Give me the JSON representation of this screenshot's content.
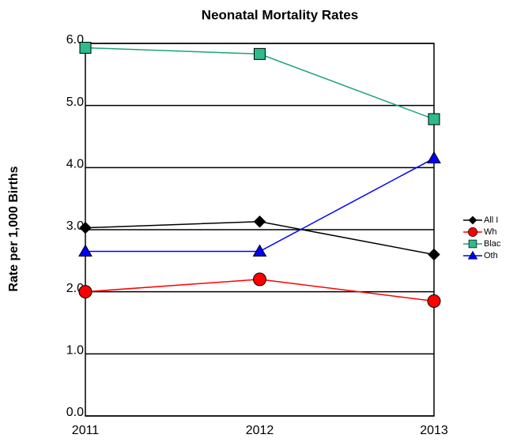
{
  "chart_data": {
    "type": "line",
    "title": "Neonatal Mortality Rates",
    "y_label": "Rate per 1,000 Births",
    "categories": [
      "2011",
      "2012",
      "2013"
    ],
    "series": [
      {
        "name": "All I",
        "color": "#000000",
        "marker": "diamond",
        "values": [
          3.03,
          3.13,
          2.6
        ]
      },
      {
        "name": "Wh",
        "color": "#ff0000",
        "marker": "circle",
        "values": [
          2.0,
          2.2,
          1.85
        ]
      },
      {
        "name": "Blac",
        "color": "#1aa37a",
        "marker": "square",
        "values": [
          5.93,
          5.83,
          4.78
        ]
      },
      {
        "name": "Oth",
        "color": "#0000ff",
        "marker": "triangle",
        "values": [
          2.65,
          2.65,
          4.15
        ]
      }
    ],
    "ylim": [
      0,
      6
    ],
    "yticks": [
      {
        "value": 0,
        "label": "0.0"
      },
      {
        "value": 1,
        "label": "1.0"
      },
      {
        "value": 2,
        "label": "2.0"
      },
      {
        "value": 3,
        "label": "3.0"
      },
      {
        "value": 4,
        "label": "4.0"
      },
      {
        "value": 5,
        "label": "5.0"
      },
      {
        "value": 6,
        "label": "6.0"
      }
    ],
    "grid": true
  }
}
